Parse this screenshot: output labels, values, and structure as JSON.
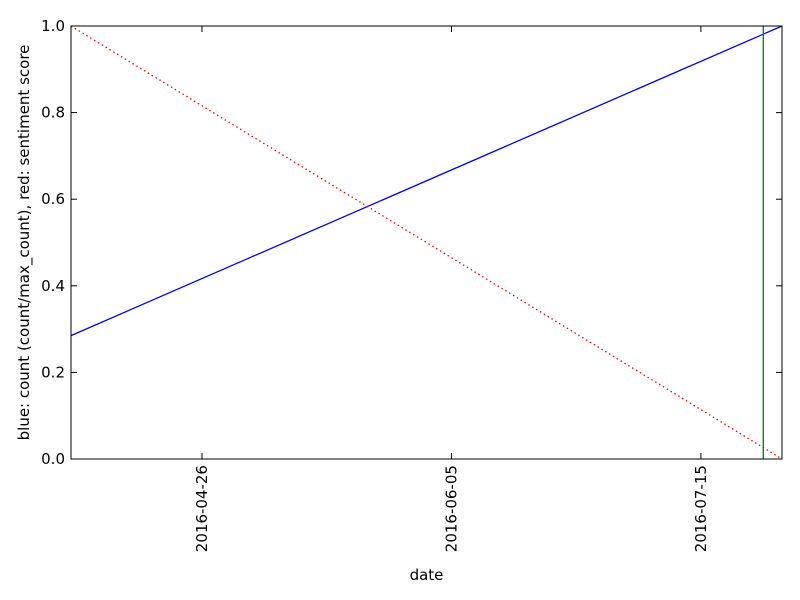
{
  "chart_data": {
    "type": "line",
    "xlabel": "date",
    "ylabel": "blue: count (count/max_count), red: sentiment score",
    "xlim": [
      "2016-04-05",
      "2016-07-28"
    ],
    "ylim": [
      0,
      1
    ],
    "x_ticks": [
      "2016-04-26",
      "2016-06-05",
      "2016-07-15"
    ],
    "y_ticks": [
      "0.0",
      "0.2",
      "0.4",
      "0.6",
      "0.8",
      "1.0"
    ],
    "grid": false,
    "series": [
      {
        "color": "#0000ff",
        "style": "solid",
        "x": [
          "2016-04-05",
          "2016-07-28"
        ],
        "values": [
          0.285,
          1.0
        ]
      },
      {
        "color": "#ff0000",
        "style": "dotted",
        "x": [
          "2016-04-05",
          "2016-07-28"
        ],
        "values": [
          1.0,
          0.0
        ]
      }
    ],
    "vertical_lines": [
      {
        "color": "#008000",
        "x": "2016-07-25"
      }
    ]
  }
}
